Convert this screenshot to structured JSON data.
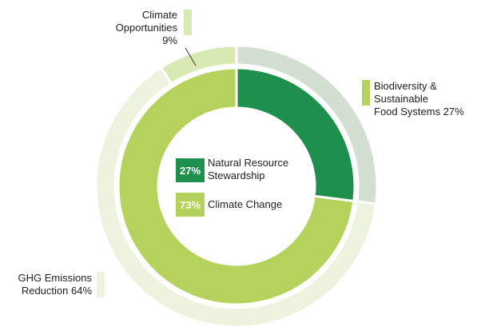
{
  "chart_data": {
    "type": "pie",
    "variant": "nested-donut",
    "inner_ring": [
      {
        "label": "Natural Resource Stewardship",
        "value": 27,
        "value_label": "27%",
        "color": "#1f8f4e"
      },
      {
        "label": "Climate Change",
        "value": 73,
        "value_label": "73%",
        "color": "#b5d35c"
      }
    ],
    "outer_ring": [
      {
        "label": "Biodiversity & Sustainable Food Systems 27%",
        "lines": [
          "Biodiversity &",
          "Sustainable",
          "Food Systems 27%"
        ],
        "value": 27,
        "color": "#d3dfd0",
        "swatch_color": "#b5d35c"
      },
      {
        "label": "GHG Emissions Reduction 64%",
        "lines": [
          "GHG Emissions",
          "Reduction 64%"
        ],
        "value": 64,
        "color": "#edf3de",
        "swatch_color": "#edf3de"
      },
      {
        "label": "Climate Opportunities 9%",
        "lines": [
          "Climate",
          "Opportunities",
          "9%"
        ],
        "value": 9,
        "color": "#d9e9b3",
        "swatch_color": "#d9e9b3"
      }
    ],
    "legend_position": "center"
  }
}
